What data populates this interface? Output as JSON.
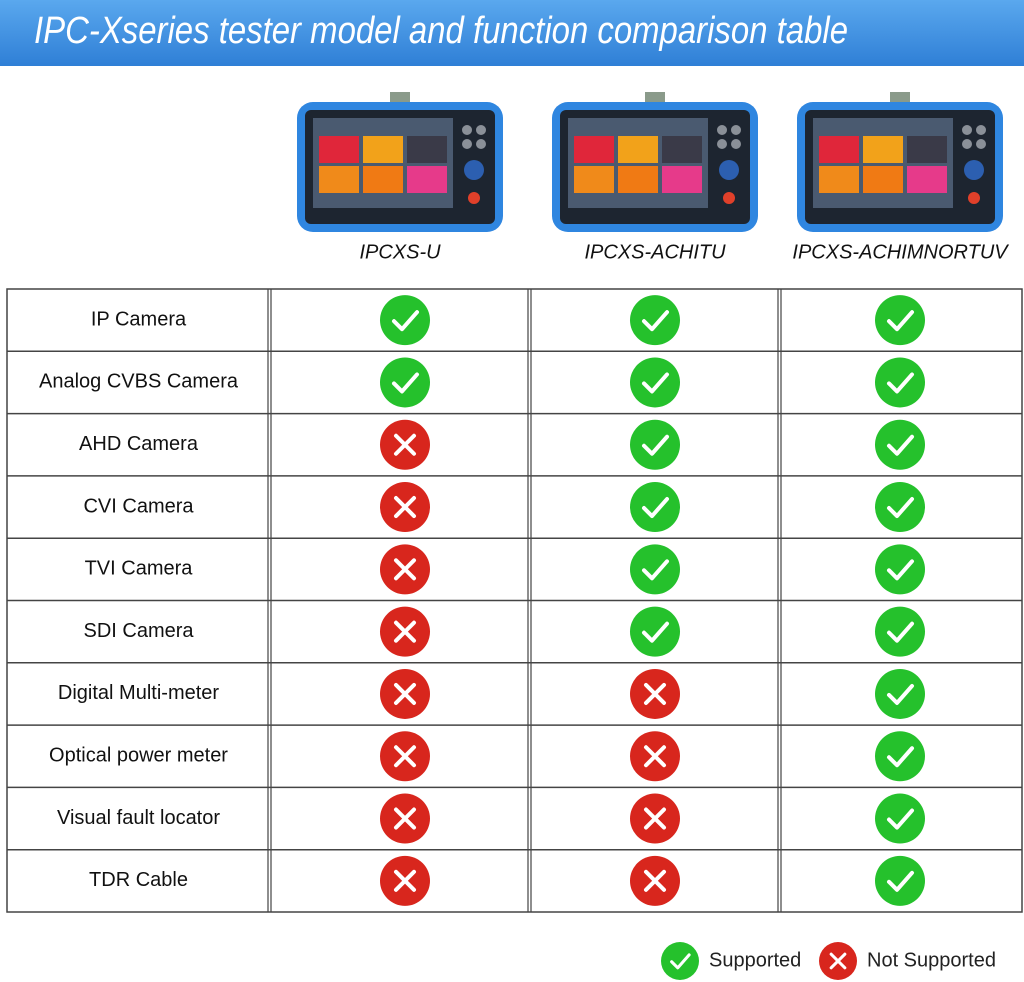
{
  "header": {
    "title": "IPC-Xseries tester model and function comparison table"
  },
  "models": [
    "IPCXS-U",
    "IPCXS-ACHITU",
    "IPCXS-ACHIMNORTUV"
  ],
  "table": {
    "rows": [
      {
        "feature": "IP Camera",
        "support": [
          true,
          true,
          true
        ]
      },
      {
        "feature": "Analog CVBS Camera",
        "support": [
          true,
          true,
          true
        ]
      },
      {
        "feature": "AHD Camera",
        "support": [
          false,
          true,
          true
        ]
      },
      {
        "feature": "CVI Camera",
        "support": [
          false,
          true,
          true
        ]
      },
      {
        "feature": "TVI Camera",
        "support": [
          false,
          true,
          true
        ]
      },
      {
        "feature": "SDI Camera",
        "support": [
          false,
          true,
          true
        ]
      },
      {
        "feature": "Digital Multi-meter",
        "support": [
          false,
          false,
          true
        ]
      },
      {
        "feature": "Optical power meter",
        "support": [
          false,
          false,
          true
        ]
      },
      {
        "feature": "Visual fault locator",
        "support": [
          false,
          false,
          true
        ]
      },
      {
        "feature": "TDR Cable",
        "support": [
          false,
          false,
          true
        ]
      }
    ]
  },
  "legend": {
    "supported": "Supported",
    "not_supported": "Not Supported"
  }
}
